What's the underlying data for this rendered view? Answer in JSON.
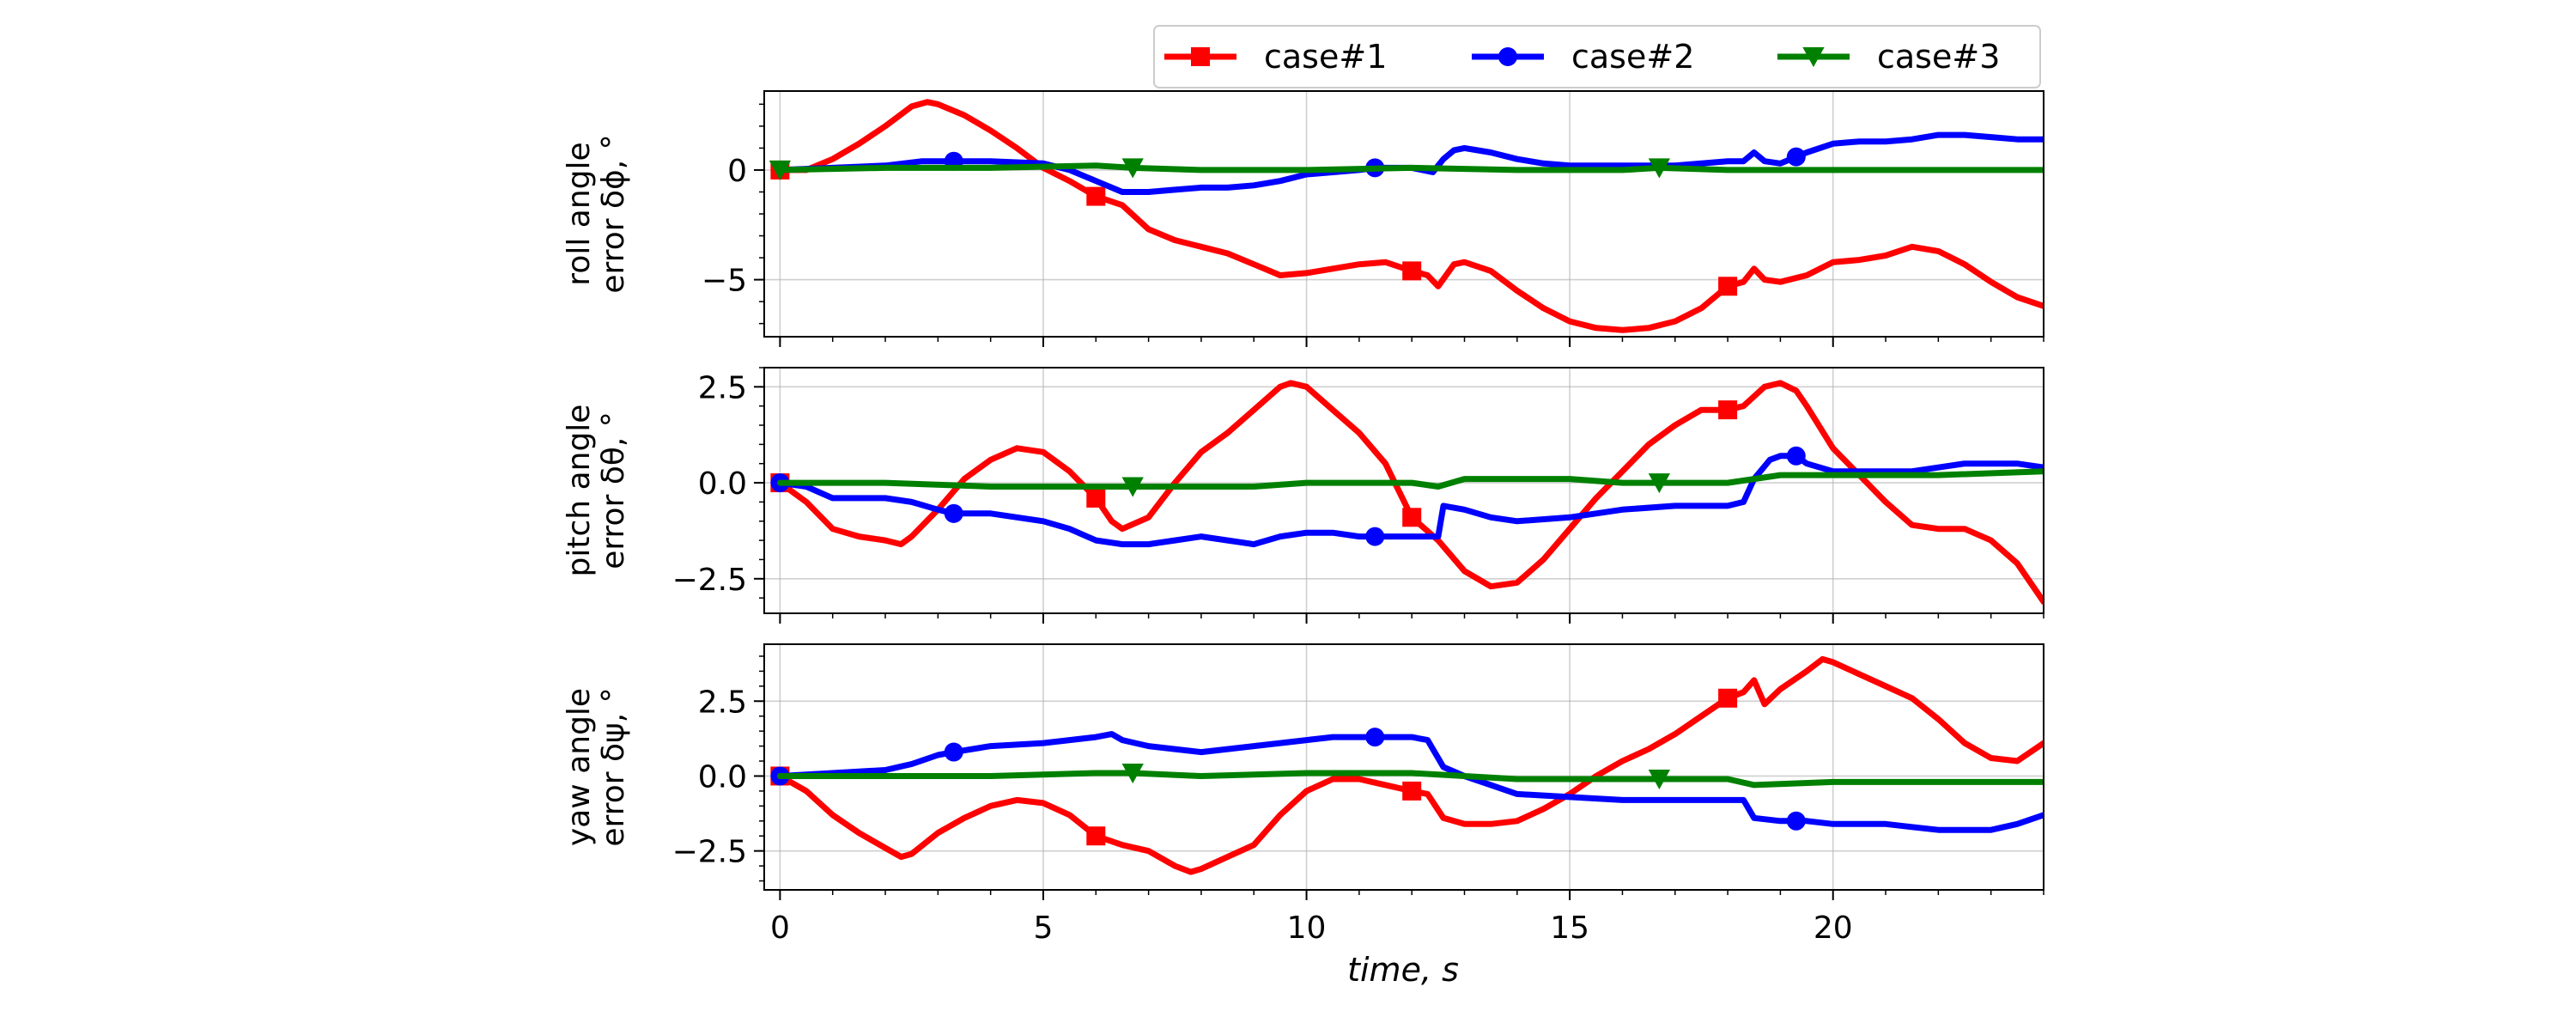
{
  "chart_data": {
    "type": "line",
    "xlabel": "time, s",
    "x_ticks": [
      0,
      5,
      10,
      15,
      20
    ],
    "xlim": [
      -0.3,
      24
    ],
    "grid": true,
    "legend": {
      "placement": "top-right",
      "entries": [
        {
          "name": "case#1",
          "color": "#ff0000",
          "marker": "square"
        },
        {
          "name": "case#2",
          "color": "#0000ff",
          "marker": "circle"
        },
        {
          "name": "case#3",
          "color": "#008000",
          "marker": "triangle-down"
        }
      ]
    },
    "panels": [
      {
        "id": "roll",
        "ylabel_line1": "roll angle",
        "ylabel_line2": "error δϕ, °",
        "ylim": [
          -7.6,
          3.6
        ],
        "y_ticks": [
          0,
          -5
        ],
        "y_tick_labels": [
          "0",
          "−5"
        ],
        "series": [
          {
            "name": "case#1",
            "x": [
              0,
              0.5,
              1,
              1.5,
              2,
              2.5,
              2.8,
              3,
              3.5,
              4,
              4.5,
              5,
              5.5,
              6,
              6.5,
              7,
              7.5,
              8,
              8.5,
              9,
              9.5,
              10,
              10.5,
              11,
              11.5,
              12,
              12.3,
              12.5,
              12.8,
              13,
              13.5,
              14,
              14.5,
              15,
              15.5,
              16,
              16.5,
              17,
              17.5,
              18,
              18.3,
              18.5,
              18.7,
              19,
              19.5,
              20,
              20.5,
              21,
              21.5,
              22,
              22.5,
              23,
              23.5,
              24
            ],
            "y": [
              0,
              0,
              0.5,
              1.2,
              2,
              2.9,
              3.1,
              3,
              2.5,
              1.8,
              1,
              0.1,
              -0.5,
              -1.2,
              -1.6,
              -2.7,
              -3.2,
              -3.5,
              -3.8,
              -4.3,
              -4.8,
              -4.7,
              -4.5,
              -4.3,
              -4.2,
              -4.6,
              -4.8,
              -5.3,
              -4.3,
              -4.2,
              -4.6,
              -5.5,
              -6.3,
              -6.9,
              -7.2,
              -7.3,
              -7.2,
              -6.9,
              -6.3,
              -5.3,
              -5.1,
              -4.5,
              -5,
              -5.1,
              -4.8,
              -4.2,
              -4.1,
              -3.9,
              -3.5,
              -3.7,
              -4.3,
              -5.1,
              -5.8,
              -6.2
            ],
            "markers_at": [
              0,
              6,
              12,
              18
            ]
          },
          {
            "name": "case#2",
            "x": [
              0,
              1,
              2,
              2.7,
              3.3,
              4,
              5,
              5.5,
              6,
              6.5,
              7,
              7.5,
              8,
              8.5,
              9,
              9.5,
              10,
              10.5,
              11,
              11.3,
              12,
              12.4,
              12.6,
              12.8,
              13,
              13.5,
              14,
              14.5,
              15,
              15.5,
              16,
              16.5,
              17,
              17.5,
              18,
              18.3,
              18.5,
              18.7,
              19,
              19.3,
              19.5,
              20,
              20.5,
              21,
              21.5,
              22,
              22.5,
              23,
              23.5,
              24
            ],
            "y": [
              0,
              0.1,
              0.2,
              0.4,
              0.4,
              0.4,
              0.3,
              0,
              -0.5,
              -1,
              -1,
              -0.9,
              -0.8,
              -0.8,
              -0.7,
              -0.5,
              -0.2,
              -0.1,
              0,
              0.1,
              0.1,
              -0.1,
              0.5,
              0.9,
              1,
              0.8,
              0.5,
              0.3,
              0.2,
              0.2,
              0.2,
              0.2,
              0.2,
              0.3,
              0.4,
              0.4,
              0.8,
              0.4,
              0.3,
              0.6,
              0.8,
              1.2,
              1.3,
              1.3,
              1.4,
              1.6,
              1.6,
              1.5,
              1.4,
              1.4
            ],
            "markers_at": [
              3.3,
              11.3,
              19.3
            ]
          },
          {
            "name": "case#3",
            "x": [
              0,
              2,
              4,
              6,
              6.7,
              8,
              10,
              12,
              14,
              16,
              16.7,
              18,
              20,
              22,
              24
            ],
            "y": [
              0,
              0.1,
              0.1,
              0.2,
              0.1,
              0,
              0,
              0.1,
              0,
              0,
              0.1,
              0,
              0,
              0,
              0
            ],
            "markers_at": [
              0,
              6.7,
              16.7
            ]
          }
        ]
      },
      {
        "id": "pitch",
        "ylabel_line1": "pitch angle",
        "ylabel_line2": "error δθ, °",
        "ylim": [
          -3.4,
          3.0
        ],
        "y_ticks": [
          2.5,
          0,
          -2.5
        ],
        "y_tick_labels": [
          "2.5",
          "0.0",
          "−2.5"
        ],
        "series": [
          {
            "name": "case#1",
            "x": [
              0,
              0.5,
              1,
              1.5,
              2,
              2.3,
              2.5,
              3,
              3.5,
              4,
              4.5,
              5,
              5.5,
              6,
              6.3,
              6.5,
              7,
              7.5,
              8,
              8.5,
              9,
              9.5,
              9.7,
              10,
              10.5,
              11,
              11.5,
              12,
              12.5,
              13,
              13.5,
              14,
              14.5,
              15,
              15.5,
              16,
              16.5,
              17,
              17.5,
              18,
              18.3,
              18.7,
              19,
              19.3,
              19.5,
              20,
              20.5,
              21,
              21.5,
              22,
              22.5,
              23,
              23.5,
              24
            ],
            "y": [
              0,
              -0.5,
              -1.2,
              -1.4,
              -1.5,
              -1.6,
              -1.4,
              -0.7,
              0.1,
              0.6,
              0.9,
              0.8,
              0.3,
              -0.4,
              -1,
              -1.2,
              -0.9,
              0,
              0.8,
              1.3,
              1.9,
              2.5,
              2.6,
              2.5,
              1.9,
              1.3,
              0.5,
              -0.9,
              -1.5,
              -2.3,
              -2.7,
              -2.6,
              -2,
              -1.2,
              -0.4,
              0.3,
              1,
              1.5,
              1.9,
              1.9,
              2,
              2.5,
              2.6,
              2.4,
              2,
              0.9,
              0.2,
              -0.5,
              -1.1,
              -1.2,
              -1.2,
              -1.5,
              -2.1,
              -3.1
            ],
            "markers_at": [
              0,
              6,
              12,
              18
            ]
          },
          {
            "name": "case#2",
            "x": [
              0,
              0.5,
              1,
              1.5,
              2,
              2.5,
              3,
              3.3,
              4,
              5,
              5.5,
              6,
              6.5,
              7,
              7.5,
              8,
              8.5,
              9,
              9.5,
              10,
              10.5,
              11,
              11.3,
              12,
              12.5,
              12.6,
              13,
              13.5,
              14,
              15,
              16,
              17,
              18,
              18.3,
              18.5,
              18.8,
              19,
              19.3,
              19.5,
              20,
              20.5,
              21,
              21.5,
              22,
              22.5,
              23,
              23.5,
              24
            ],
            "y": [
              0,
              -0.1,
              -0.4,
              -0.4,
              -0.4,
              -0.5,
              -0.7,
              -0.8,
              -0.8,
              -1,
              -1.2,
              -1.5,
              -1.6,
              -1.6,
              -1.5,
              -1.4,
              -1.5,
              -1.6,
              -1.4,
              -1.3,
              -1.3,
              -1.4,
              -1.4,
              -1.4,
              -1.4,
              -0.6,
              -0.7,
              -0.9,
              -1,
              -0.9,
              -0.7,
              -0.6,
              -0.6,
              -0.5,
              0.1,
              0.6,
              0.7,
              0.7,
              0.5,
              0.3,
              0.3,
              0.3,
              0.3,
              0.4,
              0.5,
              0.5,
              0.5,
              0.4
            ],
            "markers_at": [
              0,
              3.3,
              11.3,
              19.3
            ]
          },
          {
            "name": "case#3",
            "x": [
              0,
              2,
              4,
              5,
              6,
              6.7,
              8,
              9,
              10,
              12,
              12.5,
              13,
              14,
              15,
              16,
              16.7,
              18,
              18.5,
              19,
              20,
              22,
              24
            ],
            "y": [
              0,
              0,
              -0.1,
              -0.1,
              -0.1,
              -0.1,
              -0.1,
              -0.1,
              0,
              0,
              -0.1,
              0.1,
              0.1,
              0.1,
              0,
              0,
              0,
              0.1,
              0.2,
              0.2,
              0.2,
              0.3
            ],
            "markers_at": [
              6.7,
              16.7
            ]
          }
        ]
      },
      {
        "id": "yaw",
        "ylabel_line1": "yaw angle",
        "ylabel_line2": "error δψ, °",
        "ylim": [
          -3.8,
          4.4
        ],
        "y_ticks": [
          2.5,
          0,
          -2.5
        ],
        "y_tick_labels": [
          "2.5",
          "0.0",
          "−2.5"
        ],
        "series": [
          {
            "name": "case#1",
            "x": [
              0,
              0.5,
              1,
              1.5,
              2,
              2.3,
              2.5,
              3,
              3.5,
              4,
              4.5,
              5,
              5.5,
              6,
              6.5,
              7,
              7.5,
              7.8,
              8,
              8.5,
              9,
              9.5,
              10,
              10.5,
              11,
              11.5,
              12,
              12.3,
              12.6,
              13,
              13.5,
              14,
              14.5,
              15,
              15.5,
              16,
              16.5,
              17,
              17.5,
              18,
              18.3,
              18.5,
              18.7,
              19,
              19.5,
              19.8,
              20,
              20.5,
              21,
              21.5,
              22,
              22.5,
              23,
              23.5,
              24
            ],
            "y": [
              0,
              -0.5,
              -1.3,
              -1.9,
              -2.4,
              -2.7,
              -2.6,
              -1.9,
              -1.4,
              -1.0,
              -0.8,
              -0.9,
              -1.3,
              -2.0,
              -2.3,
              -2.5,
              -3.0,
              -3.2,
              -3.1,
              -2.7,
              -2.3,
              -1.3,
              -0.5,
              -0.1,
              -0.1,
              -0.3,
              -0.5,
              -0.6,
              -1.4,
              -1.6,
              -1.6,
              -1.5,
              -1.1,
              -0.6,
              0,
              0.5,
              0.9,
              1.4,
              2.0,
              2.6,
              2.8,
              3.2,
              2.4,
              2.9,
              3.5,
              3.9,
              3.8,
              3.4,
              3.0,
              2.6,
              1.9,
              1.1,
              0.6,
              0.5,
              1.1
            ],
            "markers_at": [
              0,
              6,
              12,
              18
            ]
          },
          {
            "name": "case#2",
            "x": [
              0,
              1,
              2,
              2.5,
              3,
              3.3,
              4,
              5,
              5.5,
              6,
              6.3,
              6.5,
              7,
              7.5,
              8,
              8.5,
              9,
              9.5,
              10,
              10.5,
              11,
              11.3,
              12,
              12.3,
              12.6,
              13,
              13.5,
              14,
              15,
              16,
              17,
              18,
              18.3,
              18.5,
              19,
              19.3,
              19.5,
              20,
              20.5,
              21,
              21.5,
              22,
              22.5,
              23,
              23.5,
              24
            ],
            "y": [
              0,
              0.1,
              0.2,
              0.4,
              0.7,
              0.8,
              1.0,
              1.1,
              1.2,
              1.3,
              1.4,
              1.2,
              1.0,
              0.9,
              0.8,
              0.9,
              1.0,
              1.1,
              1.2,
              1.3,
              1.3,
              1.3,
              1.3,
              1.2,
              0.3,
              0,
              -0.3,
              -0.6,
              -0.7,
              -0.8,
              -0.8,
              -0.8,
              -0.8,
              -1.4,
              -1.5,
              -1.5,
              -1.5,
              -1.6,
              -1.6,
              -1.6,
              -1.7,
              -1.8,
              -1.8,
              -1.8,
              -1.6,
              -1.3
            ],
            "markers_at": [
              0,
              3.3,
              11.3,
              19.3
            ]
          },
          {
            "name": "case#3",
            "x": [
              0,
              2,
              4,
              6,
              6.7,
              8,
              10,
              12,
              14,
              16,
              16.7,
              18,
              18.5,
              20,
              22,
              24
            ],
            "y": [
              0,
              0,
              0,
              0.1,
              0.1,
              0,
              0.1,
              0.1,
              -0.1,
              -0.1,
              -0.1,
              -0.1,
              -0.3,
              -0.2,
              -0.2,
              -0.2
            ],
            "markers_at": [
              6.7,
              16.7
            ]
          }
        ]
      }
    ]
  }
}
